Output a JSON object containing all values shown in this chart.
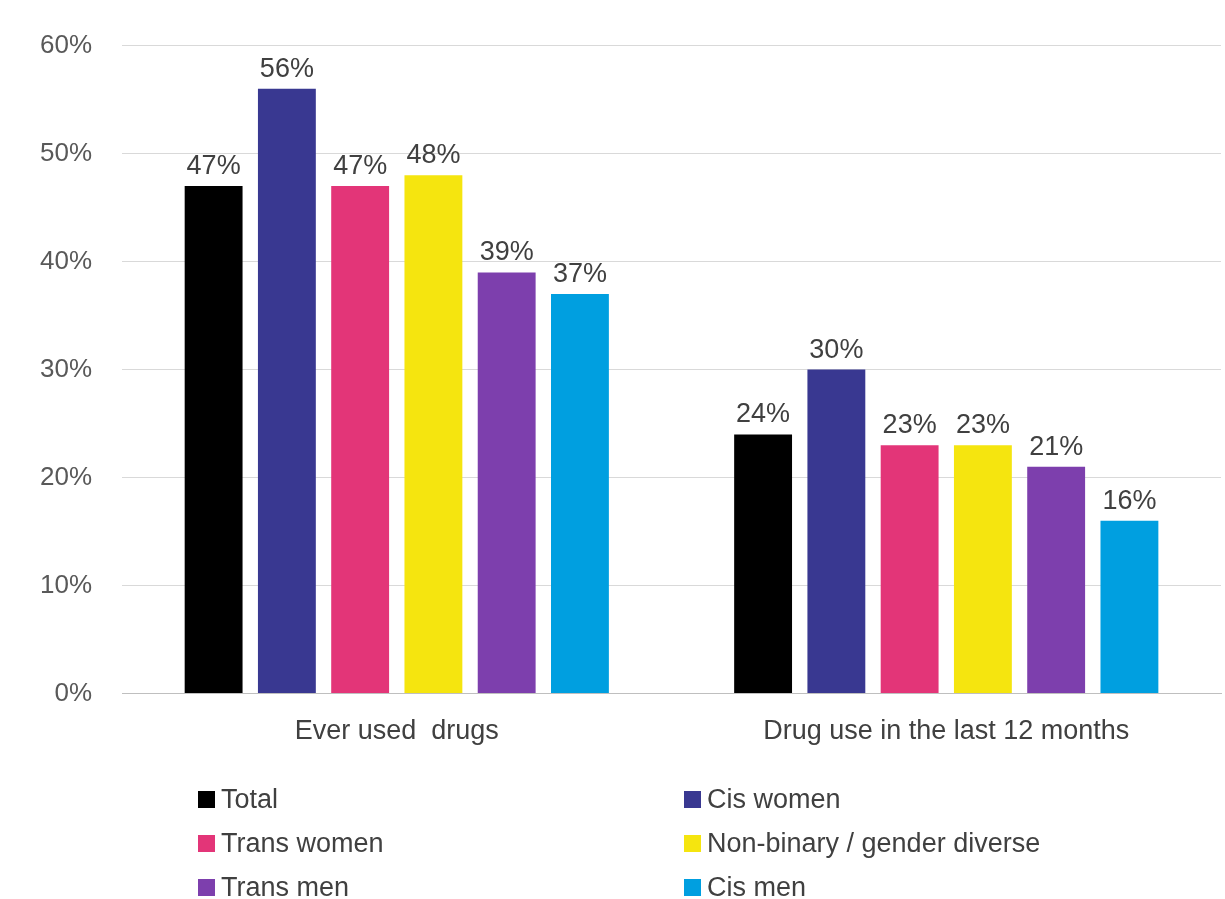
{
  "chart_data": {
    "type": "bar",
    "categories": [
      "Ever used  drugs",
      "Drug use in the last 12 months"
    ],
    "series": [
      {
        "name": "Total",
        "color": "#000000",
        "values": [
          47,
          24
        ],
        "value_labels": [
          "47%",
          "24%"
        ]
      },
      {
        "name": "Cis women",
        "color": "#393891",
        "values": [
          56,
          30
        ],
        "value_labels": [
          "56%",
          "30%"
        ]
      },
      {
        "name": "Trans women",
        "color": "#e33578",
        "values": [
          47,
          23
        ],
        "value_labels": [
          "47%",
          "23%"
        ]
      },
      {
        "name": "Non-binary / gender diverse",
        "color": "#f5e50f",
        "values": [
          48,
          23
        ],
        "value_labels": [
          "48%",
          "23%"
        ]
      },
      {
        "name": "Trans men",
        "color": "#7d3fad",
        "values": [
          39,
          21
        ],
        "value_labels": [
          "39%",
          "21%"
        ]
      },
      {
        "name": "Cis men",
        "color": "#009fe0",
        "values": [
          37,
          16
        ],
        "value_labels": [
          "37%",
          "16%"
        ]
      }
    ],
    "ylim": [
      0,
      60
    ],
    "yticks": [
      {
        "value": 0,
        "label": "0%"
      },
      {
        "value": 10,
        "label": "10%"
      },
      {
        "value": 20,
        "label": "20%"
      },
      {
        "value": 30,
        "label": "30%"
      },
      {
        "value": 40,
        "label": "40%"
      },
      {
        "value": 50,
        "label": "50%"
      },
      {
        "value": 60,
        "label": "60%"
      }
    ],
    "grid": "y",
    "legend": "bottom"
  }
}
